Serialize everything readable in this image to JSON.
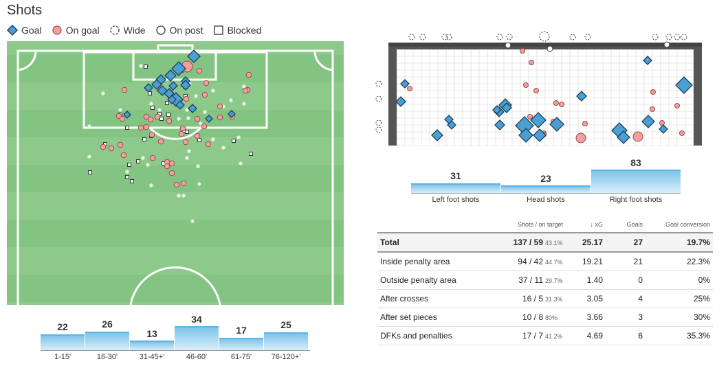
{
  "title": "Shots",
  "legend": [
    {
      "label": "Goal",
      "icon": "diamond-icon"
    },
    {
      "label": "On goal",
      "icon": "circle-icon"
    },
    {
      "label": "Wide",
      "icon": "dashed-circle-icon"
    },
    {
      "label": "On post",
      "icon": "open-circle-icon"
    },
    {
      "label": "Blocked",
      "icon": "square-icon"
    }
  ],
  "colors": {
    "goal": "#4a9fd4",
    "on_goal": "#f0a0a0",
    "pitch_light": "#8dc98b",
    "pitch_dark": "#7fbf7c",
    "bar": "#7fc4ea"
  },
  "time_bars": [
    {
      "label": "1-15'",
      "value": "22"
    },
    {
      "label": "16-30'",
      "value": "26"
    },
    {
      "label": "31-45+'",
      "value": "13"
    },
    {
      "label": "46-60'",
      "value": "34"
    },
    {
      "label": "61-75'",
      "value": "17"
    },
    {
      "label": "76-120+'",
      "value": "25"
    }
  ],
  "body_bars": [
    {
      "label": "Left foot shots",
      "value": "31"
    },
    {
      "label": "Head shots",
      "value": "23"
    },
    {
      "label": "Right foot shots",
      "value": "83"
    }
  ],
  "table": {
    "headers": [
      "",
      "Shots / on target",
      "↓ xG",
      "Goals",
      "Goal conversion"
    ],
    "rows": [
      {
        "name": "Total",
        "shots": "137 / 59",
        "pct": "43.1%",
        "xg": "25.17",
        "goals": "27",
        "conv": "19.7%"
      },
      {
        "name": "Inside penalty area",
        "shots": "94 / 42",
        "pct": "44.7%",
        "xg": "19.21",
        "goals": "21",
        "conv": "22.3%"
      },
      {
        "name": "Outside penalty area",
        "shots": "37 / 11",
        "pct": "29.7%",
        "xg": "1.40",
        "goals": "0",
        "conv": "0%"
      },
      {
        "name": "After crosses",
        "shots": "16 / 5",
        "pct": "31.3%",
        "xg": "3.05",
        "goals": "4",
        "conv": "25%"
      },
      {
        "name": "After set pieces",
        "shots": "10 / 8",
        "pct": "80%",
        "xg": "3.66",
        "goals": "3",
        "conv": "30%"
      },
      {
        "name": "DFKs and penalties",
        "shots": "17 / 7",
        "pct": "41.2%",
        "xg": "4.69",
        "goals": "6",
        "conv": "35.3%"
      }
    ]
  }
}
